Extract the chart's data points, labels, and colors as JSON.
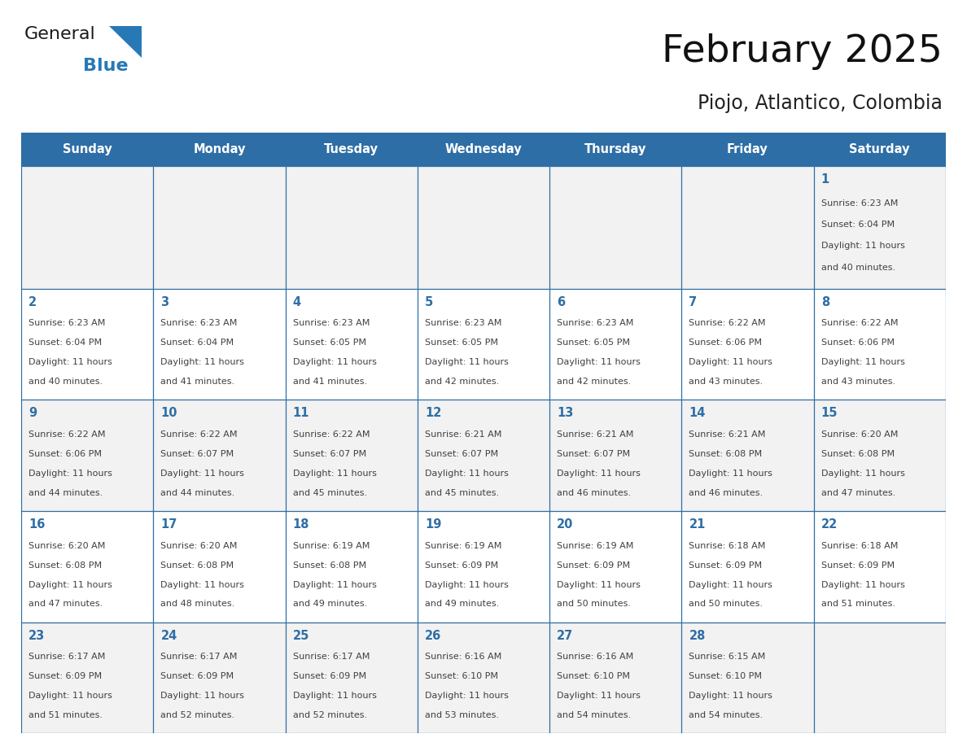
{
  "title": "February 2025",
  "subtitle": "Piojo, Atlantico, Colombia",
  "header_bg": "#2E6EA6",
  "header_text_color": "#FFFFFF",
  "cell_border_color": "#2E6EA6",
  "day_num_color": "#2E6EA6",
  "cell_text_color": "#404040",
  "bg_color": "#FFFFFF",
  "row_colors": [
    "#F2F2F2",
    "#FFFFFF",
    "#F2F2F2",
    "#FFFFFF",
    "#F2F2F2"
  ],
  "days_of_week": [
    "Sunday",
    "Monday",
    "Tuesday",
    "Wednesday",
    "Thursday",
    "Friday",
    "Saturday"
  ],
  "weeks": [
    [
      {
        "day": "",
        "sunrise": "",
        "sunset": "",
        "daylight": ""
      },
      {
        "day": "",
        "sunrise": "",
        "sunset": "",
        "daylight": ""
      },
      {
        "day": "",
        "sunrise": "",
        "sunset": "",
        "daylight": ""
      },
      {
        "day": "",
        "sunrise": "",
        "sunset": "",
        "daylight": ""
      },
      {
        "day": "",
        "sunrise": "",
        "sunset": "",
        "daylight": ""
      },
      {
        "day": "",
        "sunrise": "",
        "sunset": "",
        "daylight": ""
      },
      {
        "day": "1",
        "sunrise": "6:23 AM",
        "sunset": "6:04 PM",
        "daylight": "11 hours\nand 40 minutes."
      }
    ],
    [
      {
        "day": "2",
        "sunrise": "6:23 AM",
        "sunset": "6:04 PM",
        "daylight": "11 hours\nand 40 minutes."
      },
      {
        "day": "3",
        "sunrise": "6:23 AM",
        "sunset": "6:04 PM",
        "daylight": "11 hours\nand 41 minutes."
      },
      {
        "day": "4",
        "sunrise": "6:23 AM",
        "sunset": "6:05 PM",
        "daylight": "11 hours\nand 41 minutes."
      },
      {
        "day": "5",
        "sunrise": "6:23 AM",
        "sunset": "6:05 PM",
        "daylight": "11 hours\nand 42 minutes."
      },
      {
        "day": "6",
        "sunrise": "6:23 AM",
        "sunset": "6:05 PM",
        "daylight": "11 hours\nand 42 minutes."
      },
      {
        "day": "7",
        "sunrise": "6:22 AM",
        "sunset": "6:06 PM",
        "daylight": "11 hours\nand 43 minutes."
      },
      {
        "day": "8",
        "sunrise": "6:22 AM",
        "sunset": "6:06 PM",
        "daylight": "11 hours\nand 43 minutes."
      }
    ],
    [
      {
        "day": "9",
        "sunrise": "6:22 AM",
        "sunset": "6:06 PM",
        "daylight": "11 hours\nand 44 minutes."
      },
      {
        "day": "10",
        "sunrise": "6:22 AM",
        "sunset": "6:07 PM",
        "daylight": "11 hours\nand 44 minutes."
      },
      {
        "day": "11",
        "sunrise": "6:22 AM",
        "sunset": "6:07 PM",
        "daylight": "11 hours\nand 45 minutes."
      },
      {
        "day": "12",
        "sunrise": "6:21 AM",
        "sunset": "6:07 PM",
        "daylight": "11 hours\nand 45 minutes."
      },
      {
        "day": "13",
        "sunrise": "6:21 AM",
        "sunset": "6:07 PM",
        "daylight": "11 hours\nand 46 minutes."
      },
      {
        "day": "14",
        "sunrise": "6:21 AM",
        "sunset": "6:08 PM",
        "daylight": "11 hours\nand 46 minutes."
      },
      {
        "day": "15",
        "sunrise": "6:20 AM",
        "sunset": "6:08 PM",
        "daylight": "11 hours\nand 47 minutes."
      }
    ],
    [
      {
        "day": "16",
        "sunrise": "6:20 AM",
        "sunset": "6:08 PM",
        "daylight": "11 hours\nand 47 minutes."
      },
      {
        "day": "17",
        "sunrise": "6:20 AM",
        "sunset": "6:08 PM",
        "daylight": "11 hours\nand 48 minutes."
      },
      {
        "day": "18",
        "sunrise": "6:19 AM",
        "sunset": "6:08 PM",
        "daylight": "11 hours\nand 49 minutes."
      },
      {
        "day": "19",
        "sunrise": "6:19 AM",
        "sunset": "6:09 PM",
        "daylight": "11 hours\nand 49 minutes."
      },
      {
        "day": "20",
        "sunrise": "6:19 AM",
        "sunset": "6:09 PM",
        "daylight": "11 hours\nand 50 minutes."
      },
      {
        "day": "21",
        "sunrise": "6:18 AM",
        "sunset": "6:09 PM",
        "daylight": "11 hours\nand 50 minutes."
      },
      {
        "day": "22",
        "sunrise": "6:18 AM",
        "sunset": "6:09 PM",
        "daylight": "11 hours\nand 51 minutes."
      }
    ],
    [
      {
        "day": "23",
        "sunrise": "6:17 AM",
        "sunset": "6:09 PM",
        "daylight": "11 hours\nand 51 minutes."
      },
      {
        "day": "24",
        "sunrise": "6:17 AM",
        "sunset": "6:09 PM",
        "daylight": "11 hours\nand 52 minutes."
      },
      {
        "day": "25",
        "sunrise": "6:17 AM",
        "sunset": "6:09 PM",
        "daylight": "11 hours\nand 52 minutes."
      },
      {
        "day": "26",
        "sunrise": "6:16 AM",
        "sunset": "6:10 PM",
        "daylight": "11 hours\nand 53 minutes."
      },
      {
        "day": "27",
        "sunrise": "6:16 AM",
        "sunset": "6:10 PM",
        "daylight": "11 hours\nand 54 minutes."
      },
      {
        "day": "28",
        "sunrise": "6:15 AM",
        "sunset": "6:10 PM",
        "daylight": "11 hours\nand 54 minutes."
      },
      {
        "day": "",
        "sunrise": "",
        "sunset": "",
        "daylight": ""
      }
    ]
  ],
  "logo_color_general": "#1a1a1a",
  "logo_color_blue": "#2779B6"
}
